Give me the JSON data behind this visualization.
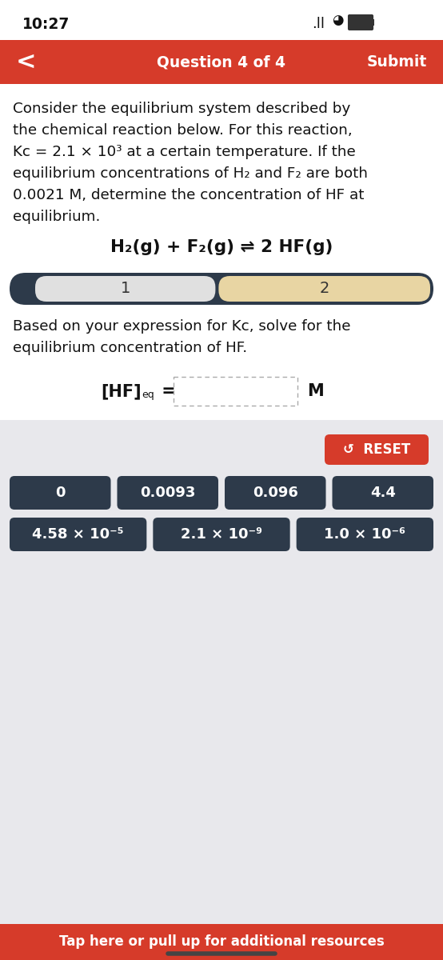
{
  "bg_color": "#e8e8ec",
  "white_bg": "#ffffff",
  "red_color": "#d63b2a",
  "dark_nav": "#2d3a4a",
  "dark_btn": "#2d3a4a",
  "time_text": "10:27",
  "nav_text": "Question 4 of 4",
  "submit_text": "Submit",
  "main_lines": [
    "Consider the equilibrium system described by",
    "the chemical reaction below. For this reaction,",
    "Kc = 2.1 × 10³ at a certain temperature. If the",
    "equilibrium concentrations of H₂ and F₂ are both",
    "0.0021 M, determine the concentration of HF at",
    "equilibrium."
  ],
  "reaction_text": "H₂(g) + F₂(g) ⇌ 2 HF(g)",
  "step1": "1",
  "step2": "2",
  "instr_lines": [
    "Based on your expression for Kc, solve for the",
    "equilibrium concentration of HF."
  ],
  "hf_label": "[HF]",
  "hf_sub": "eq",
  "hf_eq": " =",
  "m_label": "M",
  "reset_text": "↺  RESET",
  "btn_row1": [
    "0",
    "0.0093",
    "0.096",
    "4.4"
  ],
  "btn_row2": [
    "4.58 × 10⁻⁵",
    "2.1 × 10⁻⁹",
    "1.0 × 10⁻⁶"
  ],
  "tap_text": "Tap here or pull up for additional resources",
  "tan_btn": "#e8d5a3",
  "step1_bg": "#e0e0e0"
}
